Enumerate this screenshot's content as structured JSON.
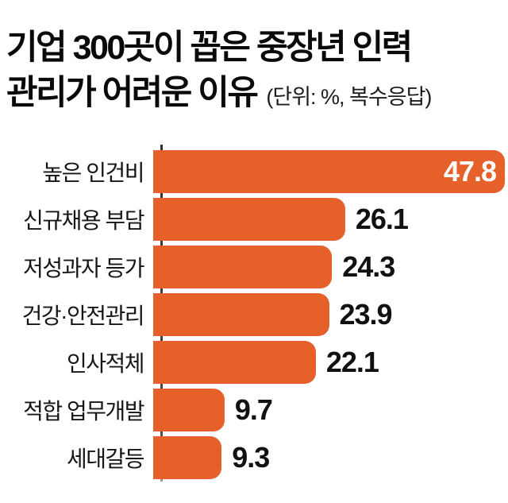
{
  "header": {
    "title_line1": "기업 300곳이 꼽은 중장년 인력",
    "title_line2": "관리가 어려운 이유",
    "unit_note": "(단위: %, 복수응답)"
  },
  "colors": {
    "bar": "#e6602a",
    "axis": "#4a4a4a",
    "value_inside_text": "#ffffff",
    "value_outside_text": "#111111",
    "label_text": "#161616",
    "title_text": "#0a0a0a"
  },
  "chart_data": {
    "type": "bar",
    "orientation": "horizontal",
    "title": "기업 300곳이 꼽은 중장년 인력 관리가 어려운 이유",
    "subtitle": "(단위: %, 복수응답)",
    "unit": "%",
    "multiple_response": true,
    "categories": [
      "높은 인건비",
      "신규채용 부담",
      "저성과자 등가",
      "건강·안전관리",
      "인사적체",
      "적합 업무개발",
      "세대갈등"
    ],
    "values": [
      47.8,
      26.1,
      24.3,
      23.9,
      22.1,
      9.7,
      9.3
    ],
    "xlim": [
      0,
      47.8
    ],
    "value_label_positions": [
      "inside",
      "outside",
      "outside",
      "outside",
      "outside",
      "outside",
      "outside"
    ],
    "grid": false,
    "legend": false
  }
}
